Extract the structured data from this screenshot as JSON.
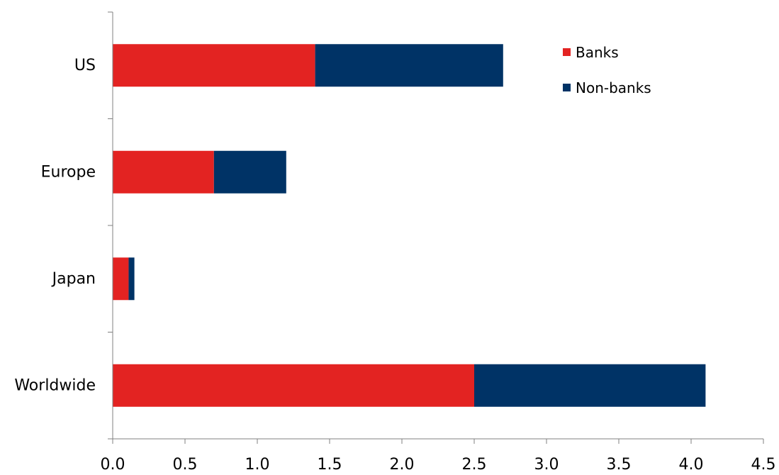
{
  "chart_data": {
    "type": "bar",
    "orientation": "horizontal",
    "stacked": true,
    "categories": [
      "US",
      "Europe",
      "Japan",
      "Worldwide"
    ],
    "series": [
      {
        "name": "Banks",
        "values": [
          1.4,
          0.7,
          0.11,
          2.5
        ],
        "color": "#e32322"
      },
      {
        "name": "Non-banks",
        "values": [
          1.3,
          0.5,
          0.04,
          1.6
        ],
        "color": "#003366"
      }
    ],
    "xlim": [
      0,
      4.5
    ],
    "x_ticks": [
      "0.0",
      "0.5",
      "1.0",
      "1.5",
      "2.0",
      "2.5",
      "3.0",
      "3.5",
      "4.0",
      "4.5"
    ],
    "grid": false,
    "legend_position": "top-right",
    "title": "",
    "xlabel": "",
    "ylabel": ""
  }
}
